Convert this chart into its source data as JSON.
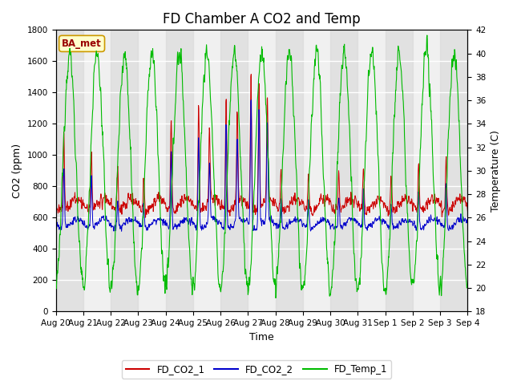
{
  "title": "FD Chamber A CO2 and Temp",
  "xlabel": "Time",
  "ylabel_left": "CO2 (ppm)",
  "ylabel_right": "Temperature (C)",
  "ylim_left": [
    0,
    1800
  ],
  "ylim_right": [
    18,
    42
  ],
  "yticks_left": [
    0,
    200,
    400,
    600,
    800,
    1000,
    1200,
    1400,
    1600,
    1800
  ],
  "yticks_right": [
    18,
    20,
    22,
    24,
    26,
    28,
    30,
    32,
    34,
    36,
    38,
    40,
    42
  ],
  "color_co2_1": "#cc0000",
  "color_co2_2": "#0000cc",
  "color_temp": "#00bb00",
  "legend_labels": [
    "FD_CO2_1",
    "FD_CO2_2",
    "FD_Temp_1"
  ],
  "watermark_text": "BA_met",
  "watermark_color": "#990000",
  "watermark_bg": "#ffffcc",
  "watermark_border": "#cc9900",
  "band_color": "#d8d8d8",
  "band_alpha": 0.6,
  "bg_color": "#f0f0f0",
  "title_fontsize": 12,
  "axis_label_fontsize": 9,
  "tick_fontsize": 7.5
}
